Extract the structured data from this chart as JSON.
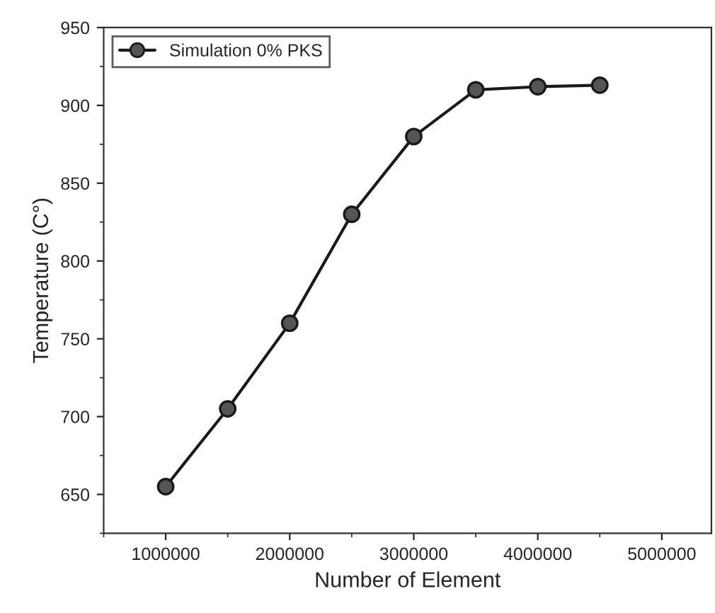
{
  "chart_data": {
    "type": "line",
    "xlabel": "Number of Element",
    "ylabel": "Temperature (C°)",
    "x": [
      1000000,
      1500000,
      2000000,
      2500000,
      3000000,
      3500000,
      4000000,
      4500000
    ],
    "series": [
      {
        "name": "Simulation 0% PKS",
        "color": "#1a1a1a",
        "values": [
          655,
          705,
          760,
          830,
          880,
          910,
          912,
          913
        ]
      }
    ],
    "xlim": [
      500000,
      5400000
    ],
    "xticks": [
      1000000,
      2000000,
      3000000,
      4000000,
      5000000
    ],
    "ylim": [
      625,
      950
    ],
    "yticks": [
      650,
      700,
      750,
      800,
      850,
      900,
      950
    ],
    "grid": false,
    "legend": "top left",
    "marker": "circle",
    "line_style": "solid"
  }
}
